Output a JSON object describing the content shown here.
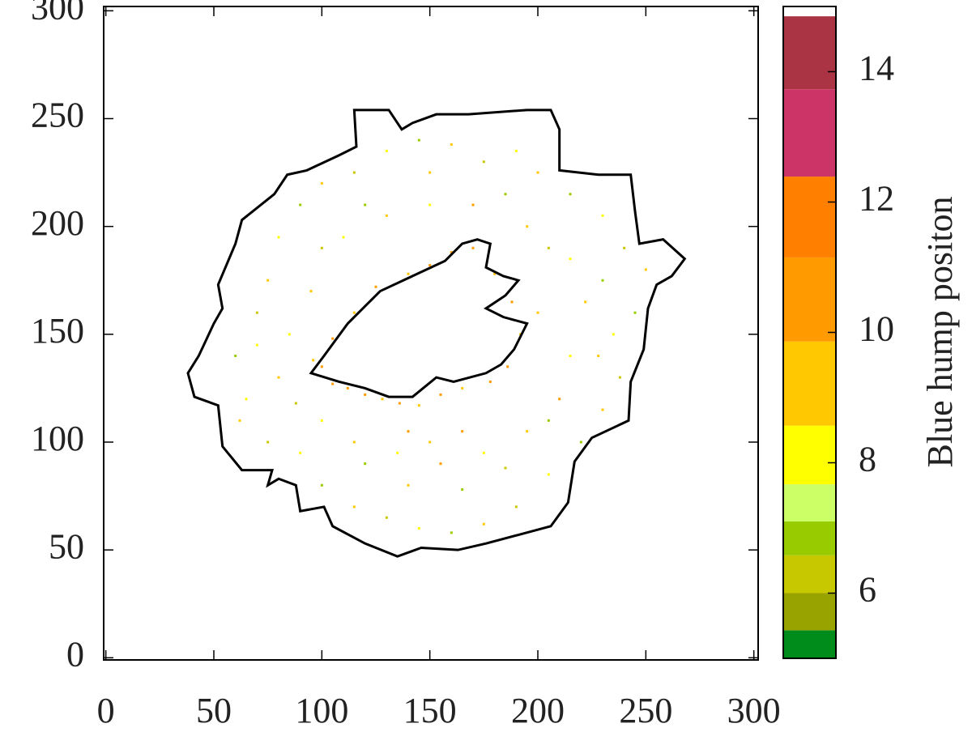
{
  "chart_data": {
    "type": "map",
    "xlim": [
      -1,
      302
    ],
    "ylim": [
      -1,
      302
    ],
    "xticks": [
      0,
      50,
      100,
      150,
      200,
      250,
      300
    ],
    "yticks": [
      0,
      50,
      100,
      150,
      200,
      250,
      300
    ],
    "contour_color": "#000000",
    "outer_contour": {
      "x": [
        38,
        43,
        50,
        54,
        52,
        60,
        63,
        78,
        84,
        93,
        108,
        116,
        115,
        131,
        137,
        142,
        153,
        168,
        195,
        206,
        210,
        210,
        228,
        243,
        245,
        247,
        258,
        268,
        262,
        255,
        251,
        249,
        243,
        242,
        225,
        217,
        214,
        206,
        191,
        176,
        163,
        146,
        135,
        120,
        105,
        101,
        90,
        88,
        80,
        75,
        77,
        63,
        54,
        52,
        41
      ],
      "y": [
        132,
        140,
        155,
        162,
        173,
        192,
        203,
        215,
        224,
        226,
        233,
        237,
        254,
        254,
        245,
        248,
        252,
        252,
        254,
        254,
        245,
        226,
        224,
        224,
        207,
        192,
        194,
        185,
        177,
        173,
        162,
        143,
        128,
        110,
        102,
        91,
        72,
        61,
        57,
        53,
        50,
        51,
        47,
        53,
        61,
        70,
        68,
        80,
        83,
        80,
        87,
        87,
        98,
        117,
        121
      ]
    },
    "inner_contour": {
      "x": [
        95,
        101,
        112,
        127,
        142,
        157,
        165,
        172,
        178,
        176,
        184,
        191,
        185,
        176,
        184,
        195,
        189,
        183,
        176,
        161,
        153,
        142,
        131,
        120,
        108
      ],
      "y": [
        132,
        140,
        155,
        170,
        177,
        184,
        192,
        194,
        192,
        181,
        177,
        175,
        168,
        162,
        158,
        155,
        143,
        136,
        132,
        128,
        130,
        121,
        121,
        125,
        128
      ]
    },
    "points": {
      "x": [
        100,
        105,
        112,
        120,
        128,
        136,
        145,
        155,
        165,
        178,
        186,
        192,
        188,
        180,
        170,
        160,
        150,
        140,
        125,
        115,
        105,
        96,
        60,
        65,
        70,
        75,
        80,
        90,
        100,
        115,
        130,
        145,
        160,
        175,
        190,
        200,
        215,
        230,
        240,
        250,
        245,
        235,
        238,
        230,
        220,
        205,
        190,
        175,
        160,
        145,
        130,
        115,
        100,
        90,
        75,
        62,
        80,
        85,
        95,
        110,
        130,
        150,
        170,
        195,
        215,
        222,
        215,
        210,
        195,
        175,
        155,
        135,
        115,
        100,
        88,
        120,
        140,
        165,
        185,
        205,
        228,
        230,
        205,
        185,
        150,
        120,
        100,
        70,
        150,
        165,
        140,
        200
      ],
      "y": [
        135,
        127,
        125,
        122,
        120,
        118,
        117,
        122,
        125,
        128,
        135,
        150,
        165,
        178,
        190,
        188,
        182,
        178,
        172,
        160,
        148,
        138,
        140,
        120,
        160,
        175,
        195,
        210,
        220,
        225,
        235,
        240,
        238,
        230,
        235,
        225,
        215,
        205,
        190,
        180,
        160,
        150,
        130,
        115,
        100,
        85,
        70,
        62,
        58,
        60,
        65,
        70,
        80,
        95,
        100,
        110,
        130,
        150,
        170,
        195,
        205,
        210,
        210,
        200,
        185,
        165,
        140,
        120,
        105,
        95,
        90,
        95,
        100,
        110,
        118,
        90,
        80,
        78,
        88,
        110,
        140,
        175,
        190,
        215,
        225,
        210,
        190,
        145,
        100,
        105,
        105,
        160
      ],
      "values": [
        10,
        10,
        11,
        10,
        9,
        10,
        9,
        10,
        9,
        10,
        10,
        9,
        10,
        9,
        10,
        11,
        10,
        9,
        10,
        9,
        10,
        9,
        7,
        8,
        6,
        9,
        8,
        7,
        9,
        6,
        8,
        7,
        9,
        6,
        8,
        9,
        7,
        8,
        6,
        9,
        7,
        8,
        6,
        9,
        7,
        8,
        6,
        9,
        7,
        8,
        6,
        9,
        7,
        8,
        6,
        9,
        9,
        8,
        9,
        8,
        9,
        8,
        10,
        9,
        8,
        9,
        8,
        10,
        9,
        8,
        10,
        8,
        9,
        8,
        6,
        7,
        9,
        7,
        6,
        7,
        9,
        7,
        6,
        7,
        9,
        7,
        6,
        8,
        9,
        10,
        11,
        9
      ]
    },
    "colorbar": {
      "label": "Blue hump positon",
      "lim": [
        5,
        15
      ],
      "bounds": [
        5,
        5.43,
        6.0,
        6.58,
        7.1,
        7.67,
        8.57,
        9.86,
        11.15,
        12.39,
        13.73,
        14.85,
        15
      ],
      "colors": [
        "#008c1a",
        "#99a300",
        "#c8c800",
        "#99cc00",
        "#ccff66",
        "#ffff00",
        "#ffc800",
        "#ff9b00",
        "#ff7f00",
        "#cc3366",
        "#aa3344",
        "#ffffff"
      ],
      "ticks": [
        6,
        8,
        10,
        12,
        14
      ]
    }
  }
}
